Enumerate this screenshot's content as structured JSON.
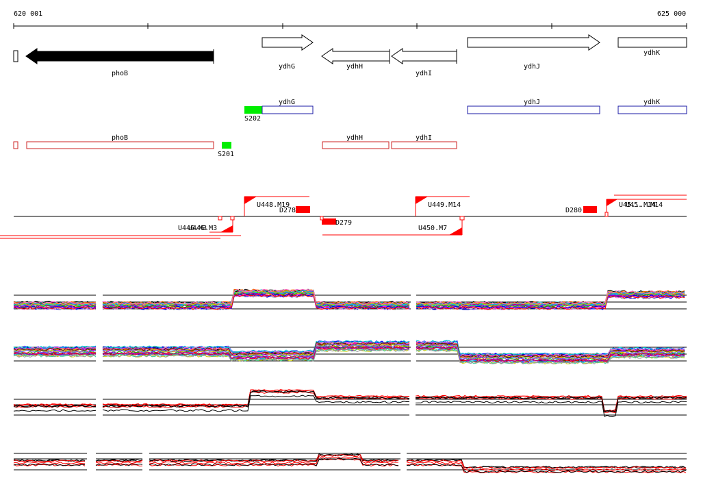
{
  "coordinates": {
    "start": "620 001",
    "end": "625 000"
  },
  "genes": [
    {
      "name": "phoB",
      "strand": "-",
      "fill": "#000000"
    },
    {
      "name": "ydhG",
      "strand": "+",
      "fill": "#ffffff"
    },
    {
      "name": "ydhH",
      "strand": "-",
      "fill": "#ffffff"
    },
    {
      "name": "ydhI",
      "strand": "-",
      "fill": "#ffffff"
    },
    {
      "name": "ydhJ",
      "strand": "+",
      "fill": "#ffffff"
    },
    {
      "name": "ydhK",
      "strand": "+",
      "fill": "#ffffff"
    }
  ],
  "plus_track": {
    "color": "#1a1aa6",
    "features": [
      {
        "label": "S202",
        "kind": "segment",
        "color": "#00ee00"
      },
      {
        "label": "ydhG",
        "kind": "gene"
      },
      {
        "label": "ydhJ",
        "kind": "gene"
      },
      {
        "label": "ydhK",
        "kind": "gene"
      }
    ]
  },
  "minus_track": {
    "color": "#cc2222",
    "features": [
      {
        "label": "",
        "kind": "gene"
      },
      {
        "label": "phoB",
        "kind": "gene"
      },
      {
        "label": "S201",
        "kind": "segment",
        "color": "#00ee00"
      },
      {
        "label": "ydhH",
        "kind": "gene"
      },
      {
        "label": "ydhI",
        "kind": "gene"
      }
    ]
  },
  "transcripts": [
    {
      "label": "U448.M19"
    },
    {
      "label": "U449.M14"
    },
    {
      "label": "U45...M14"
    },
    {
      "label": "U446.M3"
    },
    {
      "label": "U450.M7"
    }
  ],
  "downstream_marks": [
    {
      "label": "D278"
    },
    {
      "label": "D279"
    },
    {
      "label": "D280"
    }
  ],
  "colors": {
    "accent_red": "#ff0000",
    "green": "#00ee00",
    "blue": "#1a1aa6",
    "black": "#000000"
  }
}
